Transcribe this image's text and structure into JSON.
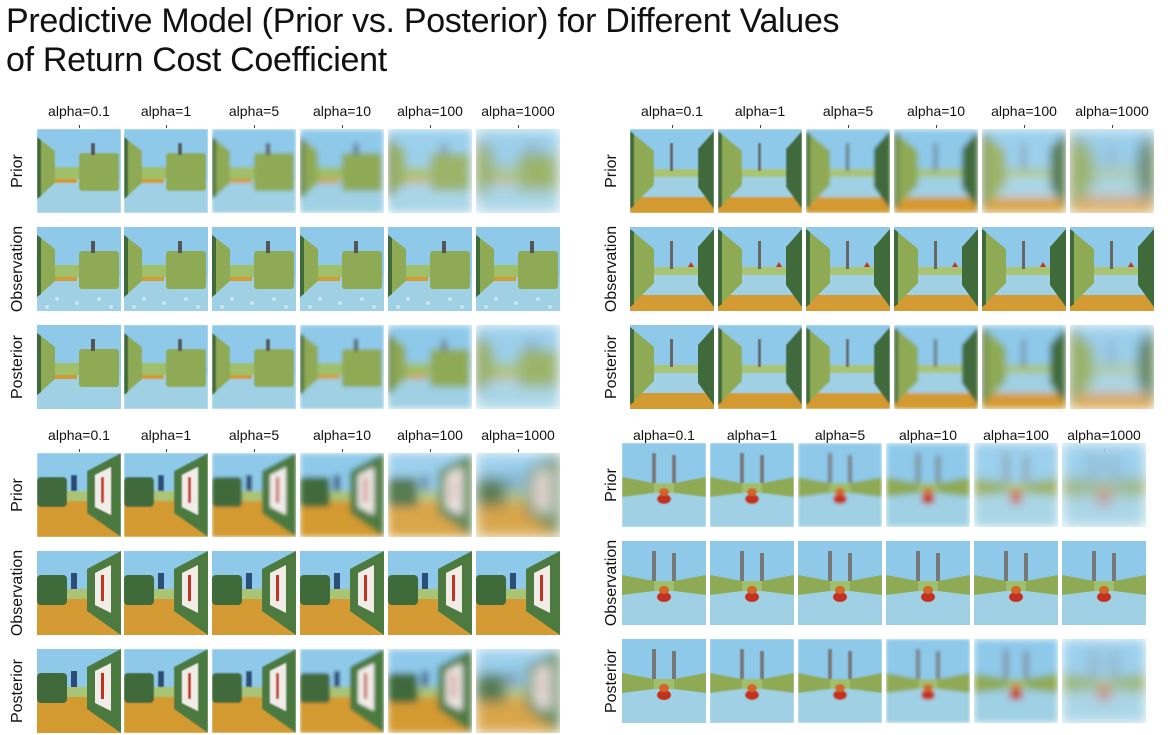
{
  "figure": {
    "title_line1": "Predictive Model (Prior vs. Posterior) for Different Values",
    "title_line2": "of Return Cost Coefficient"
  },
  "panels": [
    {
      "id": "top-left",
      "scene": "corridor-right-block",
      "columns": [
        "alpha=0.1",
        "alpha=1",
        "alpha=5",
        "alpha=10",
        "alpha=100",
        "alpha=1000"
      ],
      "rows": [
        "Prior",
        "Observation",
        "Posterior"
      ]
    },
    {
      "id": "top-right",
      "scene": "corridor-open",
      "columns": [
        "alpha=0.1",
        "alpha=1",
        "alpha=5",
        "alpha=10",
        "alpha=100",
        "alpha=1000"
      ],
      "rows": [
        "Prior",
        "Observation",
        "Posterior"
      ]
    },
    {
      "id": "bottom-left",
      "scene": "corridor-painting",
      "columns": [
        "alpha=0.1",
        "alpha=1",
        "alpha=5",
        "alpha=10",
        "alpha=100",
        "alpha=1000"
      ],
      "rows": [
        "Prior",
        "Observation",
        "Posterior"
      ]
    },
    {
      "id": "bottom-right",
      "scene": "red-object",
      "columns": [
        "alpha=0.1",
        "alpha=1",
        "alpha=5",
        "alpha=10",
        "alpha=100",
        "alpha=1000"
      ],
      "rows": [
        "Prior",
        "Observation",
        "Posterior"
      ]
    }
  ],
  "colors": {
    "sky": "#8ec9ea",
    "floor": "#9fd0e3",
    "wall_green": "#8faa55",
    "wall_dark": "#3f6b3a",
    "orange_floor": "#d49a33",
    "red_object": "#c3331f"
  }
}
